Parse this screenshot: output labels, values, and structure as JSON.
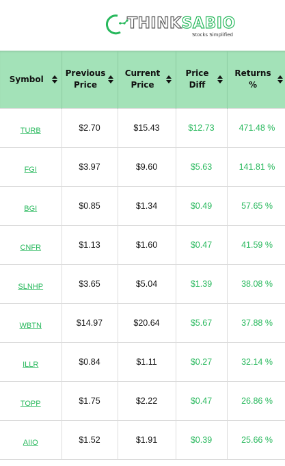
{
  "brand": {
    "name_part1": "THINK",
    "name_part2": "SABIO",
    "tagline": "Stocks Simplified",
    "accent_color": "#27b85c",
    "header_color": "#a3e2b8"
  },
  "table": {
    "columns": [
      {
        "label": "Symbol",
        "icon": "sort-icon"
      },
      {
        "label": "Previous Price",
        "icon": "sort-icon"
      },
      {
        "label": "Current Price",
        "icon": "sort-icon"
      },
      {
        "label": "Price Diff",
        "icon": "sort-icon"
      },
      {
        "label": "Returns %",
        "icon": "sort-icon"
      }
    ],
    "rows": [
      {
        "symbol": "TURB",
        "previous": "$2.70",
        "current": "$15.43",
        "diff": "$12.73",
        "returns": "471.48 %"
      },
      {
        "symbol": "FGI",
        "previous": "$3.97",
        "current": "$9.60",
        "diff": "$5.63",
        "returns": "141.81 %"
      },
      {
        "symbol": "BGI",
        "previous": "$0.85",
        "current": "$1.34",
        "diff": "$0.49",
        "returns": "57.65 %"
      },
      {
        "symbol": "CNFR",
        "previous": "$1.13",
        "current": "$1.60",
        "diff": "$0.47",
        "returns": "41.59 %"
      },
      {
        "symbol": "SLNHP",
        "previous": "$3.65",
        "current": "$5.04",
        "diff": "$1.39",
        "returns": "38.08 %"
      },
      {
        "symbol": "WBTN",
        "previous": "$14.97",
        "current": "$20.64",
        "diff": "$5.67",
        "returns": "37.88 %"
      },
      {
        "symbol": "ILLR",
        "previous": "$0.84",
        "current": "$1.11",
        "diff": "$0.27",
        "returns": "32.14 %"
      },
      {
        "symbol": "TOPP",
        "previous": "$1.75",
        "current": "$2.22",
        "diff": "$0.47",
        "returns": "26.86 %"
      },
      {
        "symbol": "AIIO",
        "previous": "$1.52",
        "current": "$1.91",
        "diff": "$0.39",
        "returns": "25.66 %"
      }
    ]
  }
}
